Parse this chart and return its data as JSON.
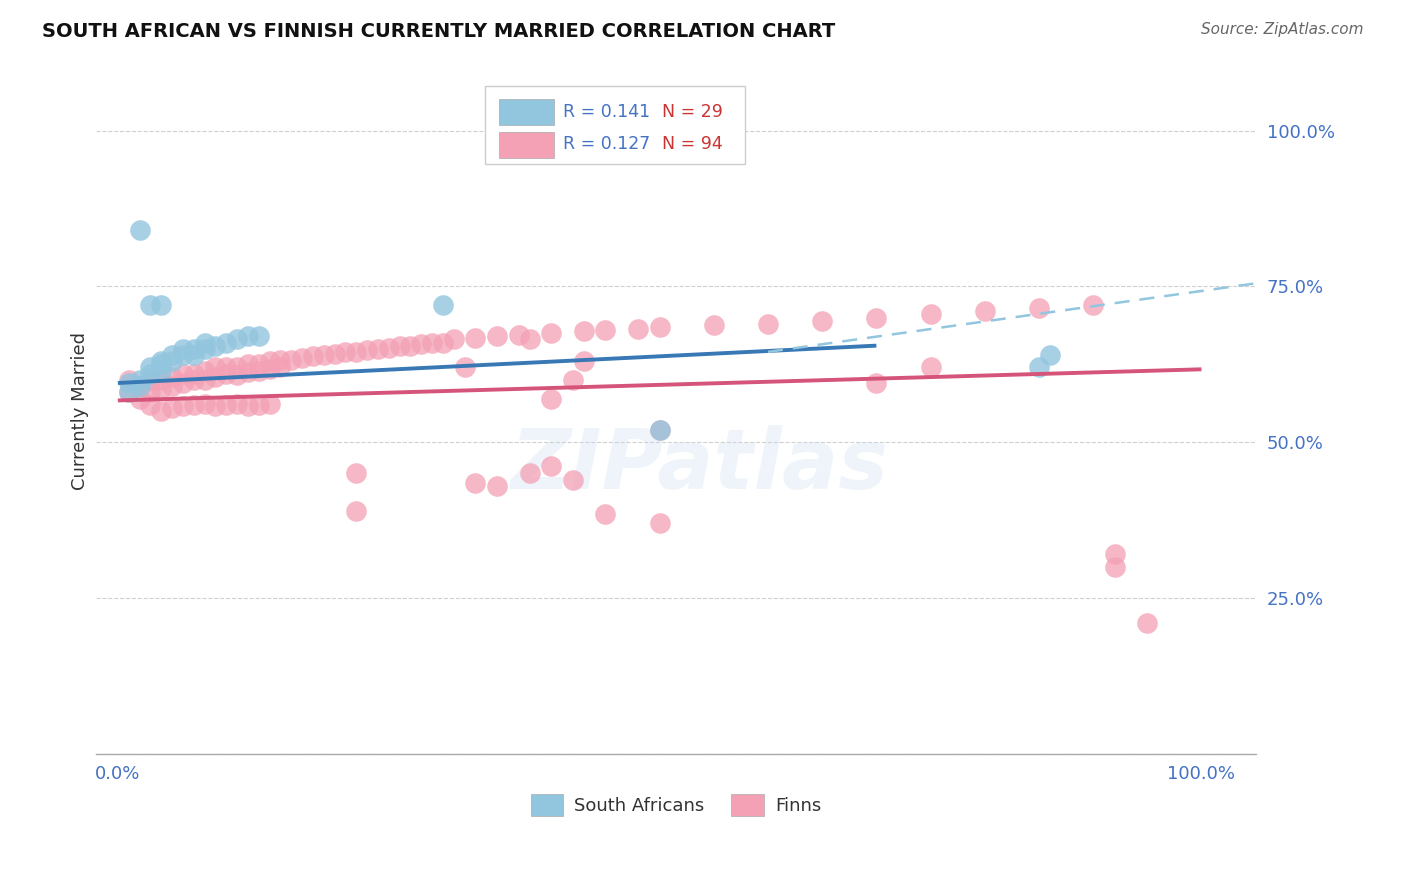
{
  "title": "SOUTH AFRICAN VS FINNISH CURRENTLY MARRIED CORRELATION CHART",
  "source": "Source: ZipAtlas.com",
  "ylabel": "Currently Married",
  "ytick_values": [
    0.0,
    0.25,
    0.5,
    0.75,
    1.0
  ],
  "ytick_labels": [
    "",
    "25.0%",
    "50.0%",
    "75.0%",
    "100.0%"
  ],
  "xtick_values": [
    0.0,
    1.0
  ],
  "xtick_labels": [
    "0.0%",
    "100.0%"
  ],
  "xlim": [
    -0.02,
    1.05
  ],
  "ylim": [
    0.0,
    1.1
  ],
  "legend_r_blue": "R = 0.141",
  "legend_n_blue": "N = 29",
  "legend_r_pink": "R = 0.127",
  "legend_n_pink": "N = 94",
  "blue_scatter_color": "#92c5de",
  "pink_scatter_color": "#f4a0b5",
  "blue_line_color": "#3878b4",
  "pink_line_color": "#d4547a",
  "dashed_line_color": "#92c5de",
  "tick_color": "#4472c4",
  "grid_color": "#d0d0d0",
  "background_color": "#ffffff",
  "watermark": "ZIPatlas",
  "blue_line_x": [
    0.0,
    0.7
  ],
  "blue_line_y": [
    0.595,
    0.655
  ],
  "dashed_line_x": [
    0.6,
    1.05
  ],
  "dashed_line_y": [
    0.645,
    0.755
  ],
  "pink_line_x": [
    0.0,
    1.0
  ],
  "pink_line_y": [
    0.567,
    0.617
  ],
  "sa_x": [
    0.01,
    0.01,
    0.02,
    0.02,
    0.03,
    0.03,
    0.04,
    0.04,
    0.04,
    0.05,
    0.05,
    0.06,
    0.06,
    0.07,
    0.07,
    0.08,
    0.08,
    0.09,
    0.1,
    0.11,
    0.12,
    0.13,
    0.02,
    0.03,
    0.04,
    0.3,
    0.5,
    0.85,
    0.86
  ],
  "sa_y": [
    0.595,
    0.58,
    0.6,
    0.59,
    0.62,
    0.61,
    0.63,
    0.625,
    0.615,
    0.64,
    0.63,
    0.65,
    0.64,
    0.65,
    0.64,
    0.66,
    0.65,
    0.655,
    0.66,
    0.665,
    0.67,
    0.67,
    0.84,
    0.72,
    0.72,
    0.72,
    0.52,
    0.62,
    0.64
  ],
  "finn_x": [
    0.01,
    0.01,
    0.02,
    0.02,
    0.03,
    0.03,
    0.04,
    0.04,
    0.05,
    0.05,
    0.06,
    0.06,
    0.07,
    0.07,
    0.08,
    0.08,
    0.09,
    0.09,
    0.1,
    0.1,
    0.11,
    0.11,
    0.12,
    0.12,
    0.13,
    0.13,
    0.14,
    0.14,
    0.15,
    0.15,
    0.16,
    0.17,
    0.18,
    0.19,
    0.2,
    0.21,
    0.22,
    0.23,
    0.24,
    0.25,
    0.26,
    0.27,
    0.28,
    0.29,
    0.3,
    0.31,
    0.33,
    0.35,
    0.37,
    0.4,
    0.43,
    0.45,
    0.48,
    0.5,
    0.55,
    0.6,
    0.65,
    0.7,
    0.75,
    0.8,
    0.85,
    0.9,
    0.03,
    0.04,
    0.05,
    0.06,
    0.07,
    0.08,
    0.09,
    0.1,
    0.11,
    0.12,
    0.13,
    0.14,
    0.22,
    0.32,
    0.33,
    0.38,
    0.4,
    0.42,
    0.43,
    0.5,
    0.7,
    0.75,
    0.92,
    0.92,
    0.95,
    0.35,
    0.38,
    0.4,
    0.42,
    0.22,
    0.45,
    0.5
  ],
  "finn_y": [
    0.6,
    0.58,
    0.59,
    0.57,
    0.6,
    0.58,
    0.6,
    0.585,
    0.605,
    0.59,
    0.61,
    0.595,
    0.61,
    0.6,
    0.615,
    0.6,
    0.62,
    0.605,
    0.62,
    0.61,
    0.62,
    0.608,
    0.625,
    0.612,
    0.625,
    0.615,
    0.63,
    0.618,
    0.632,
    0.62,
    0.632,
    0.635,
    0.638,
    0.64,
    0.642,
    0.645,
    0.645,
    0.648,
    0.65,
    0.652,
    0.655,
    0.655,
    0.658,
    0.66,
    0.66,
    0.665,
    0.668,
    0.67,
    0.672,
    0.675,
    0.678,
    0.68,
    0.682,
    0.685,
    0.688,
    0.69,
    0.695,
    0.7,
    0.705,
    0.71,
    0.715,
    0.72,
    0.56,
    0.55,
    0.555,
    0.558,
    0.56,
    0.562,
    0.558,
    0.56,
    0.562,
    0.558,
    0.56,
    0.562,
    0.45,
    0.62,
    0.435,
    0.665,
    0.57,
    0.6,
    0.63,
    0.52,
    0.595,
    0.62,
    0.3,
    0.32,
    0.21,
    0.43,
    0.45,
    0.462,
    0.44,
    0.39,
    0.385,
    0.37
  ]
}
